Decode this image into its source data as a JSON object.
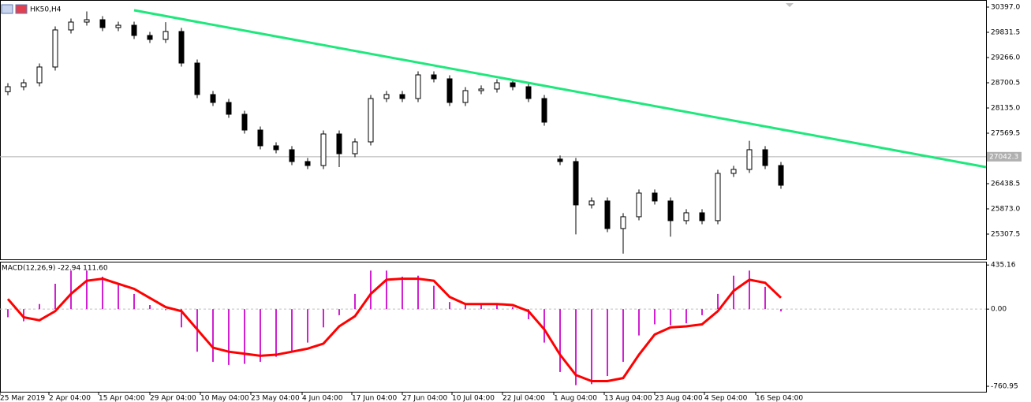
{
  "chart_data": [
    {
      "type": "candlestick",
      "title": "HK50,H4",
      "bull_color": "#ffffff",
      "bear_color": "#000000",
      "xlim": [
        0,
        62.5
      ],
      "xticks": [
        {
          "value": 0,
          "label": "25 Mar 2019"
        },
        {
          "value": 3.1,
          "label": "2 Apr 04:00"
        },
        {
          "value": 6.25,
          "label": "15 Apr 04:00"
        },
        {
          "value": 9.5,
          "label": "29 Apr 04:00"
        },
        {
          "value": 12.7,
          "label": "10 May 04:00"
        },
        {
          "value": 15.9,
          "label": "23 May 04:00"
        },
        {
          "value": 19.15,
          "label": "4 Jun 04:00"
        },
        {
          "value": 22.3,
          "label": "17 Jun 04:00"
        },
        {
          "value": 25.5,
          "label": "27 Jun 04:00"
        },
        {
          "value": 28.65,
          "label": "10 Jul 04:00"
        },
        {
          "value": 31.85,
          "label": "22 Jul 04:00"
        },
        {
          "value": 35.1,
          "label": "1 Aug 04:00"
        },
        {
          "value": 38.3,
          "label": "13 Aug 04:00"
        },
        {
          "value": 41.5,
          "label": "23 Aug 04:00"
        },
        {
          "value": 44.65,
          "label": "4 Sep 04:00"
        },
        {
          "value": 47.9,
          "label": "16 Sep 04:00"
        }
      ],
      "ylim": [
        24724,
        30556
      ],
      "yticks": [
        {
          "value": 30397,
          "label": "30397.0"
        },
        29831.5,
        {
          "value": 29266,
          "label": "29266.0"
        },
        28700.5,
        {
          "value": 28135,
          "label": "28135.0"
        },
        27569.5,
        26438.5,
        {
          "value": 25873,
          "label": "25873.0"
        },
        25307.5
      ],
      "current_price": 27042.3,
      "trendline": {
        "color": "#1ee87c",
        "x": [
          8.5,
          62.5
        ],
        "y": [
          30326,
          26810
        ]
      },
      "open": [
        28500,
        28612,
        28700,
        29054,
        29885,
        30061,
        30114,
        29938,
        29990,
        29761,
        29672,
        29850,
        29142,
        28436,
        28259,
        27994,
        27640,
        27287,
        27199,
        26934,
        26845,
        27552,
        27110,
        27375,
        28347,
        28436,
        28347,
        28877,
        28789,
        28259,
        28524,
        28560,
        28700,
        28612,
        28347,
        26990,
        26934,
        25962,
        26050,
        25432,
        25697,
        26227,
        26050,
        25609,
        25785,
        25609,
        26669,
        26758,
        27199,
        26845
      ],
      "high": [
        28692,
        28780,
        29134,
        29965,
        30141,
        30300,
        30194,
        30070,
        30070,
        29841,
        30060,
        29930,
        29222,
        28516,
        28339,
        28074,
        27720,
        27367,
        27279,
        27014,
        27632,
        27632,
        27455,
        28427,
        28516,
        28516,
        28957,
        28957,
        28869,
        28604,
        28640,
        28780,
        28780,
        28692,
        28427,
        27070,
        27014,
        26130,
        26130,
        25777,
        26307,
        26307,
        26130,
        25865,
        25865,
        26749,
        26838,
        27400,
        27279,
        26925
      ],
      "low": [
        28420,
        28532,
        28620,
        28974,
        29805,
        29981,
        29858,
        29858,
        29681,
        29592,
        29592,
        29062,
        28356,
        28179,
        27914,
        27560,
        27207,
        27119,
        26854,
        26765,
        26765,
        26810,
        27030,
        27295,
        28267,
        28267,
        28267,
        28709,
        28179,
        28179,
        28444,
        28480,
        28532,
        28267,
        27737,
        26854,
        25300,
        25882,
        25352,
        24870,
        25617,
        25970,
        25250,
        25529,
        25529,
        25529,
        26589,
        26678,
        26765,
        26323
      ],
      "close": [
        28612,
        28700,
        29054,
        29885,
        30061,
        30114,
        29938,
        29990,
        29761,
        29672,
        29850,
        29142,
        28436,
        28259,
        27994,
        27640,
        27287,
        27199,
        26934,
        26845,
        27552,
        27110,
        27375,
        28347,
        28436,
        28347,
        28877,
        28789,
        28259,
        28524,
        28560,
        28700,
        28612,
        28347,
        27817,
        26934,
        25962,
        26050,
        25432,
        25697,
        26227,
        26050,
        25609,
        25785,
        25609,
        26669,
        26758,
        27199,
        26845,
        26403
      ]
    },
    {
      "type": "macd",
      "title": "MACD(12,26,9) -22.94 111.60",
      "xlim": [
        0,
        62.5
      ],
      "ylim": [
        -815,
        460
      ],
      "yticks": [
        435.16,
        {
          "value": 0,
          "label": "0.00"
        },
        -760.95
      ],
      "bars": {
        "color": "#d020d0",
        "values": [
          -80,
          -120,
          50,
          250,
          380,
          380,
          320,
          250,
          150,
          40,
          -10,
          -180,
          -420,
          -520,
          -550,
          -540,
          -520,
          -470,
          -430,
          -330,
          -180,
          -60,
          150,
          380,
          380,
          320,
          330,
          230,
          70,
          40,
          50,
          50,
          20,
          -100,
          -330,
          -620,
          -750,
          -740,
          -660,
          -520,
          -260,
          -150,
          -160,
          -140,
          -60,
          150,
          330,
          380,
          220,
          -22.94
        ]
      },
      "line": {
        "color": "#ff0000",
        "values": [
          100,
          -80,
          -110,
          -20,
          150,
          280,
          300,
          250,
          200,
          110,
          20,
          -20,
          -200,
          -380,
          -420,
          -440,
          -460,
          -450,
          -420,
          -390,
          -340,
          -170,
          -70,
          150,
          290,
          300,
          300,
          280,
          120,
          50,
          50,
          50,
          40,
          -20,
          -200,
          -450,
          -650,
          -710,
          -710,
          -680,
          -450,
          -250,
          -180,
          -170,
          -150,
          -20,
          180,
          290,
          260,
          111.6
        ]
      }
    }
  ]
}
